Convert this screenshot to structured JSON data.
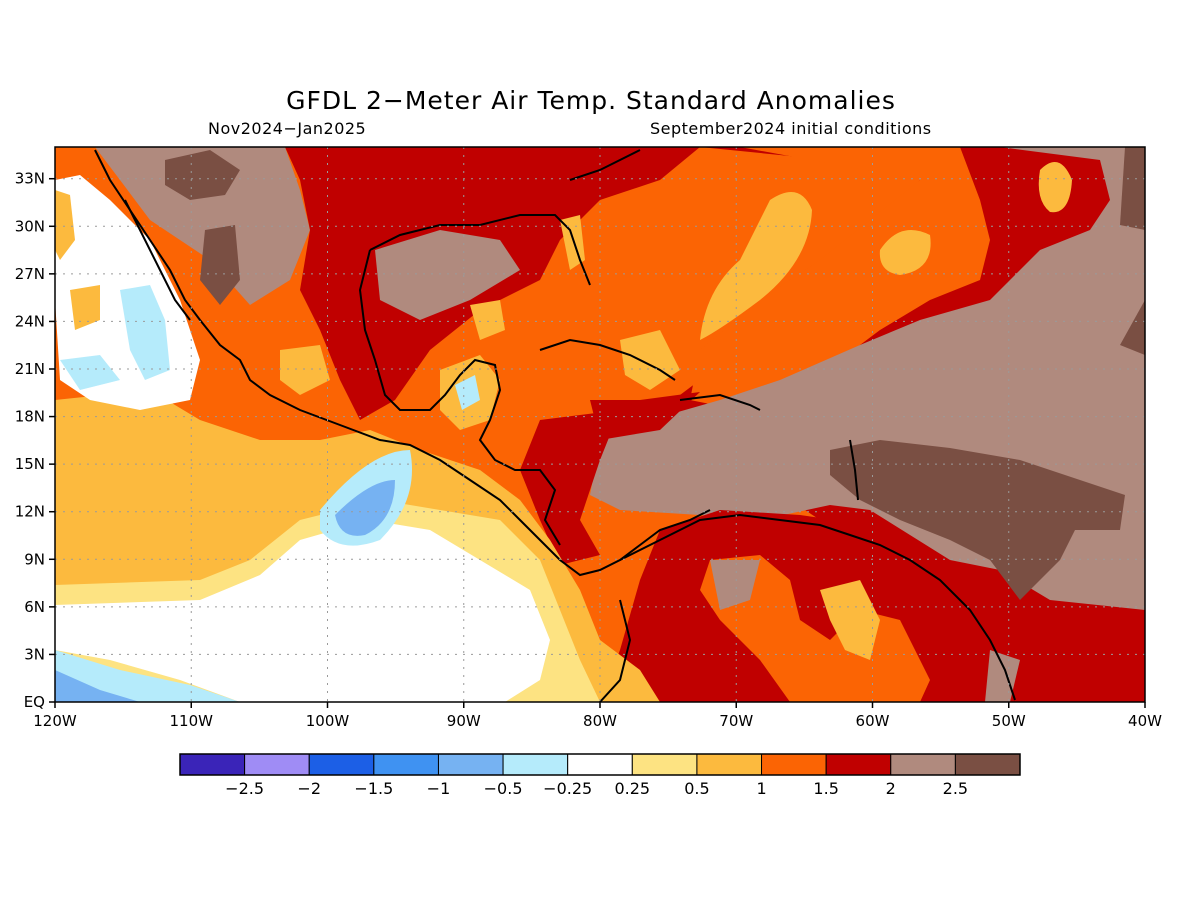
{
  "header": {
    "title": "GFDL 2−Meter Air Temp. Standard Anomalies",
    "period": "Nov2024−Jan2025",
    "init": "September2024 initial conditions"
  },
  "map": {
    "lon_range": [
      -120,
      -40
    ],
    "lat_range": [
      0,
      35
    ],
    "lon_ticks": [
      {
        "v": -120,
        "label": "120W"
      },
      {
        "v": -110,
        "label": "110W"
      },
      {
        "v": -100,
        "label": "100W"
      },
      {
        "v": -90,
        "label": "90W"
      },
      {
        "v": -80,
        "label": "80W"
      },
      {
        "v": -70,
        "label": "70W"
      },
      {
        "v": -60,
        "label": "60W"
      },
      {
        "v": -50,
        "label": "50W"
      },
      {
        "v": -40,
        "label": "40W"
      }
    ],
    "lat_ticks": [
      {
        "v": 0,
        "label": "EQ"
      },
      {
        "v": 3,
        "label": "3N"
      },
      {
        "v": 6,
        "label": "6N"
      },
      {
        "v": 9,
        "label": "9N"
      },
      {
        "v": 12,
        "label": "12N"
      },
      {
        "v": 15,
        "label": "15N"
      },
      {
        "v": 18,
        "label": "18N"
      },
      {
        "v": 21,
        "label": "21N"
      },
      {
        "v": 24,
        "label": "24N"
      },
      {
        "v": 27,
        "label": "27N"
      },
      {
        "v": 30,
        "label": "30N"
      },
      {
        "v": 33,
        "label": "33N"
      }
    ]
  },
  "colorbar": {
    "colors": [
      "#3a24b8",
      "#9f8cf5",
      "#1c5fe6",
      "#3f92f2",
      "#76b2f2",
      "#b5ebfb",
      "#ffffff",
      "#fde382",
      "#fcba3e",
      "#fb6404",
      "#c00000",
      "#b08a7e",
      "#7a4f43"
    ],
    "labels": [
      "−2.5",
      "−2",
      "−1.5",
      "−1",
      "−0.5",
      "−0.25",
      "0.25",
      "0.5",
      "1",
      "1.5",
      "2",
      "2.5"
    ]
  }
}
